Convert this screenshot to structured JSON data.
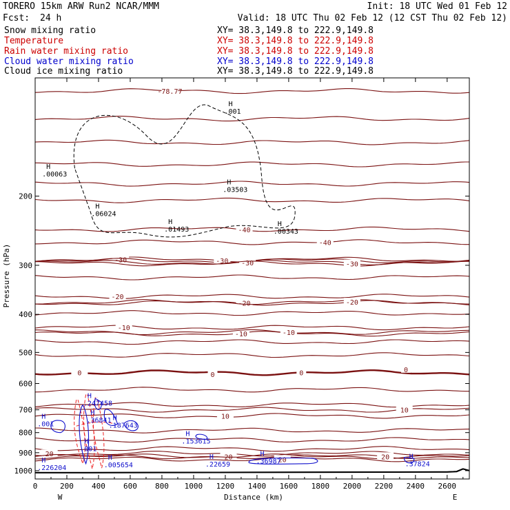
{
  "header": {
    "model": "TORERO  15km ARW   Run2    NCAR/MMM",
    "init": "Init: 18 UTC Wed 01 Feb 12",
    "fcst_label": "Fcst:",
    "fcst_value": "24 h",
    "valid": "Valid: 18 UTC Thu 02 Feb 12 (12 CST Thu 02 Feb 12)"
  },
  "legend": [
    {
      "name": "Snow mixing ratio",
      "xy": "XY=  38.3,149.8 to 222.9,149.8",
      "color": "#000000"
    },
    {
      "name": "Temperature",
      "xy": "XY=  38.3,149.8 to 222.9,149.8",
      "color": "#cc0000"
    },
    {
      "name": "Rain water mixing ratio",
      "xy": "XY=  38.3,149.8 to 222.9,149.8",
      "color": "#cc0000"
    },
    {
      "name": "Cloud water mixing ratio",
      "xy": "XY=  38.3,149.8 to 222.9,149.8",
      "color": "#0000cc"
    },
    {
      "name": "Cloud ice mixing ratio",
      "xy": "XY=  38.3,149.8 to 222.9,149.8",
      "color": "#000000"
    }
  ],
  "colors": {
    "temperature": "#7a1010",
    "rain": "#ee2020",
    "cloud_water": "#1010cc",
    "cloud_ice": "#000000",
    "terrain": "#000000"
  },
  "chart_data": {
    "type": "line",
    "title": "",
    "xlabel": "Distance (km)",
    "ylabel": "Pressure (hPa)",
    "xlim": [
      0,
      2740
    ],
    "ylim": [
      1050,
      100
    ],
    "y_scale": "log-pressure",
    "x_ticks": [
      0,
      200,
      400,
      600,
      800,
      1000,
      1200,
      1400,
      1600,
      1800,
      2000,
      2200,
      2400,
      2600
    ],
    "y_ticks": [
      200,
      300,
      400,
      500,
      600,
      700,
      800,
      900,
      1000
    ],
    "x_end_labels": {
      "left": "W",
      "right": "E"
    },
    "temperature_levels": [
      {
        "p": 108,
        "label": "-78.77",
        "label_x": 850
      },
      {
        "p": 127
      },
      {
        "p": 146
      },
      {
        "p": 166
      },
      {
        "p": 186
      },
      {
        "p": 205
      },
      {
        "p": 243,
        "label": "-40",
        "label_x": 1320
      },
      {
        "p": 262,
        "label": "-40",
        "label_x": 1830
      },
      {
        "p": 290,
        "label": "-30",
        "label_x": 540
      },
      {
        "p": 292,
        "label": "-30",
        "label_x": 1180
      },
      {
        "p": 295,
        "label": "-30",
        "label_x": 1340
      },
      {
        "p": 297,
        "label": "-30",
        "label_x": 2000
      },
      {
        "p": 322
      },
      {
        "p": 360,
        "label": "-20",
        "label_x": 520
      },
      {
        "p": 374,
        "label": "-20",
        "label_x": 1320
      },
      {
        "p": 372,
        "label": "-20",
        "label_x": 2000
      },
      {
        "p": 397
      },
      {
        "p": 432,
        "label": "-10",
        "label_x": 560
      },
      {
        "p": 448,
        "label": "-10",
        "label_x": 1300
      },
      {
        "p": 444,
        "label": "-10",
        "label_x": 1600
      },
      {
        "p": 470
      },
      {
        "p": 508
      },
      {
        "p": 563,
        "label": "0",
        "label_x": 280,
        "bold": true
      },
      {
        "p": 622
      },
      {
        "p": 680
      },
      {
        "p": 725,
        "label": "10",
        "label_x": 1200
      },
      {
        "p": 700,
        "label": "10",
        "label_x": 2330
      },
      {
        "p": 790
      },
      {
        "p": 835
      },
      {
        "p": 880
      },
      {
        "p": 905,
        "label": "20",
        "label_x": 90
      },
      {
        "p": 920,
        "label": "20",
        "label_x": 1220
      },
      {
        "p": 935,
        "label": "20",
        "label_x": 1560
      },
      {
        "p": 920,
        "label": "20",
        "label_x": 2210
      }
    ],
    "extra_zero_labels": [
      {
        "x": 1120,
        "p": 568,
        "label": "0"
      },
      {
        "x": 1680,
        "p": 563,
        "label": "0"
      },
      {
        "x": 2340,
        "p": 552,
        "label": "0"
      }
    ],
    "maxima_labels": [
      {
        "x": 70,
        "p": 176,
        "text": ".00063",
        "color": "#000000"
      },
      {
        "x": 380,
        "p": 222,
        "text": ".06024",
        "color": "#000000"
      },
      {
        "x": 840,
        "p": 243,
        "text": ".01493",
        "color": "#000000"
      },
      {
        "x": 1210,
        "p": 193,
        "text": ".03503",
        "color": "#000000"
      },
      {
        "x": 1530,
        "p": 246,
        "text": ".00343",
        "color": "#000000"
      },
      {
        "x": 1220,
        "p": 122,
        "text": ".001",
        "color": "#000000"
      },
      {
        "x": 330,
        "p": 675,
        "text": ".247458",
        "color": "#1010cc"
      },
      {
        "x": 350,
        "p": 745,
        "text": ".36841",
        "color": "#1010cc"
      },
      {
        "x": 490,
        "p": 767,
        "text": ".187643",
        "color": "#1010cc"
      },
      {
        "x": 40,
        "p": 762,
        "text": ".001",
        "color": "#1010cc"
      },
      {
        "x": 310,
        "p": 880,
        "text": ".001",
        "color": "#1010cc"
      },
      {
        "x": 950,
        "p": 842,
        "text": ".153615",
        "color": "#1010cc"
      },
      {
        "x": 40,
        "p": 985,
        "text": ".226204",
        "color": "#1010cc"
      },
      {
        "x": 460,
        "p": 968,
        "text": ".005654",
        "color": "#1010cc"
      },
      {
        "x": 1100,
        "p": 965,
        "text": ".22659",
        "color": "#1010cc"
      },
      {
        "x": 1420,
        "p": 948,
        "text": ".36987",
        "color": "#1010cc"
      },
      {
        "x": 2360,
        "p": 962,
        "text": ".37824",
        "color": "#1010cc"
      }
    ],
    "terrain_hpa_at_x": [
      [
        0,
        1012
      ],
      [
        200,
        1012
      ],
      [
        800,
        1011
      ],
      [
        1400,
        1010
      ],
      [
        2000,
        1009
      ],
      [
        2600,
        1008
      ],
      [
        2660,
        1005
      ],
      [
        2700,
        990
      ],
      [
        2740,
        1000
      ]
    ]
  }
}
